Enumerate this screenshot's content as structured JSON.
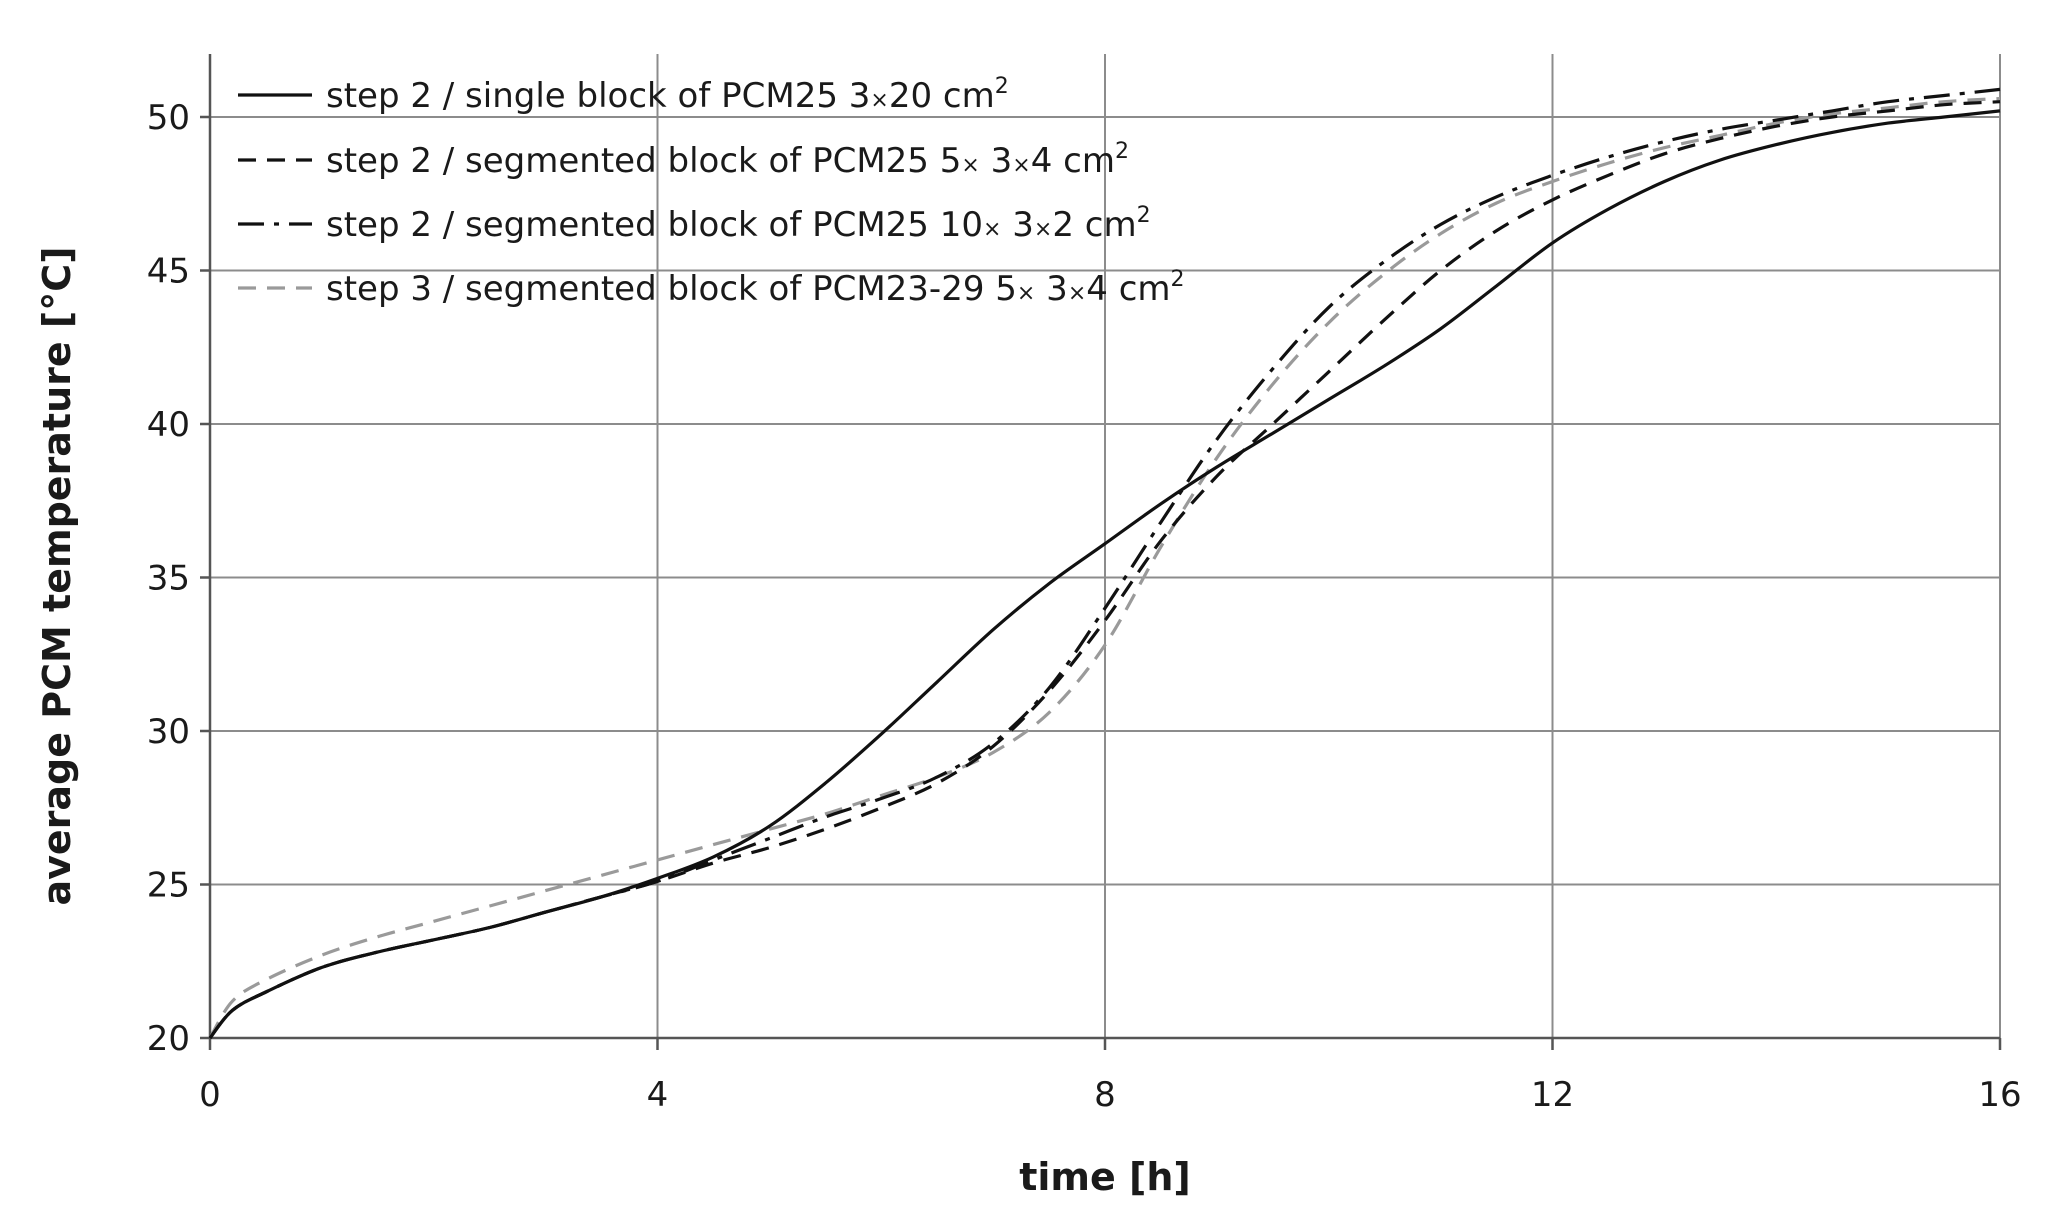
{
  "chart_data": {
    "type": "line",
    "title": "",
    "xlabel": "time [h]",
    "ylabel": "average PCM temperature [°C]",
    "xlim": [
      0,
      16
    ],
    "ylim": [
      20,
      52
    ],
    "xticks": [
      0,
      4,
      8,
      12,
      16
    ],
    "yticks": [
      20,
      25,
      30,
      35,
      40,
      45,
      50
    ],
    "grid": true,
    "legend_position": "top-left",
    "series": [
      {
        "name": "step 2 / single block of PCM25  3×20 cm²",
        "legend": {
          "prefix": "step 2 / single block of PCM25  ",
          "a": "3",
          "b": "20",
          "unit": " cm",
          "sup": "2"
        },
        "style": "solid",
        "color": "#111111",
        "x": [
          0,
          0.2,
          0.5,
          1,
          1.5,
          2,
          2.5,
          3,
          3.5,
          4,
          4.5,
          5,
          5.5,
          6,
          6.5,
          7,
          7.5,
          8,
          8.5,
          9,
          9.5,
          10,
          10.5,
          11,
          11.5,
          12,
          12.5,
          13,
          13.5,
          14,
          14.5,
          15,
          15.5,
          16
        ],
        "values": [
          20,
          20.9,
          21.5,
          22.3,
          22.8,
          23.2,
          23.6,
          24.1,
          24.6,
          25.2,
          25.9,
          26.9,
          28.3,
          29.9,
          31.6,
          33.3,
          34.8,
          36.1,
          37.4,
          38.6,
          39.7,
          40.8,
          41.9,
          43.1,
          44.5,
          45.9,
          47.0,
          47.9,
          48.6,
          49.1,
          49.5,
          49.8,
          50.0,
          50.2
        ]
      },
      {
        "name": "step 2 / segmented block of PCM25  5× 3×4 cm²",
        "legend": {
          "prefix": "step 2 / segmented block of PCM25  ",
          "n": "5",
          "a": "3",
          "b": "4",
          "unit": " cm",
          "sup": "2"
        },
        "style": "dashed",
        "color": "#111111",
        "x": [
          0,
          0.2,
          0.5,
          1,
          1.5,
          2,
          2.5,
          3,
          3.5,
          4,
          4.5,
          5,
          5.5,
          6,
          6.5,
          7,
          7.5,
          8,
          8.5,
          9,
          9.5,
          10,
          10.5,
          11,
          11.5,
          12,
          12.5,
          13,
          13.5,
          14,
          14.5,
          15,
          15.5,
          16
        ],
        "values": [
          20,
          20.9,
          21.5,
          22.3,
          22.8,
          23.2,
          23.6,
          24.1,
          24.6,
          25.1,
          25.7,
          26.2,
          26.8,
          27.5,
          28.3,
          29.5,
          31.3,
          33.6,
          36.2,
          38.3,
          40.0,
          41.7,
          43.4,
          45.0,
          46.3,
          47.3,
          48.1,
          48.8,
          49.3,
          49.7,
          50.0,
          50.2,
          50.4,
          50.5
        ]
      },
      {
        "name": "step 2 / segmented block of PCM25  10× 3×2 cm²",
        "legend": {
          "prefix": "step 2 / segmented block of PCM25  ",
          "n": "10",
          "a": "3",
          "b": "2",
          "unit": " cm",
          "sup": "2"
        },
        "style": "dashdot",
        "color": "#111111",
        "x": [
          0,
          0.2,
          0.5,
          1,
          1.5,
          2,
          2.5,
          3,
          3.5,
          4,
          4.5,
          5,
          5.5,
          6,
          6.5,
          7,
          7.5,
          8,
          8.5,
          9,
          9.5,
          10,
          10.5,
          11,
          11.5,
          12,
          12.5,
          13,
          13.5,
          14,
          14.5,
          15,
          15.5,
          16
        ],
        "values": [
          20,
          20.9,
          21.5,
          22.3,
          22.8,
          23.2,
          23.6,
          24.1,
          24.6,
          25.1,
          25.8,
          26.5,
          27.2,
          27.8,
          28.5,
          29.6,
          31.4,
          34.0,
          36.8,
          39.5,
          41.8,
          43.8,
          45.3,
          46.5,
          47.4,
          48.1,
          48.7,
          49.2,
          49.6,
          49.9,
          50.2,
          50.5,
          50.7,
          50.9
        ]
      },
      {
        "name": "step 3 / segmented block of PCM23-29  5× 3×4 cm²",
        "legend": {
          "prefix": "step 3 / segmented block of PCM23-29  ",
          "n": "5",
          "a": "3",
          "b": "4",
          "unit": " cm",
          "sup": "2"
        },
        "style": "dashed",
        "color": "#9a9a9a",
        "x": [
          0,
          0.2,
          0.5,
          1,
          1.5,
          2,
          2.5,
          3,
          3.5,
          4,
          4.5,
          5,
          5.5,
          6,
          6.5,
          7,
          7.5,
          8,
          8.5,
          9,
          9.5,
          10,
          10.5,
          11,
          11.5,
          12,
          12.5,
          13,
          13.5,
          14,
          14.5,
          15,
          15.5,
          16
        ],
        "values": [
          20,
          21.2,
          21.9,
          22.7,
          23.3,
          23.8,
          24.3,
          24.8,
          25.3,
          25.8,
          26.3,
          26.8,
          27.3,
          27.9,
          28.5,
          29.3,
          30.6,
          32.8,
          36.0,
          38.9,
          41.3,
          43.3,
          44.9,
          46.2,
          47.2,
          47.9,
          48.5,
          49.0,
          49.4,
          49.8,
          50.1,
          50.3,
          50.5,
          50.6
        ]
      }
    ]
  }
}
